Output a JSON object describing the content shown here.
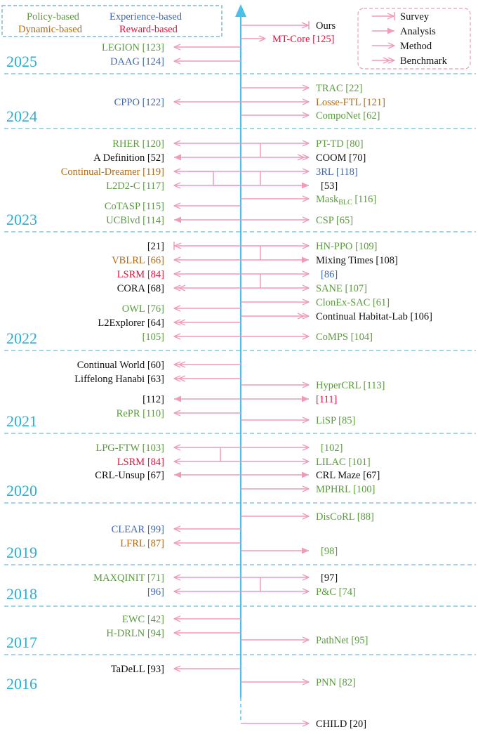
{
  "colors": {
    "policy": "#5b9a3f",
    "experience": "#3e67b1",
    "dynamic": "#b06a14",
    "reward": "#e0143c",
    "other": "#111111",
    "arrow": "#f29ab9",
    "axis": "#4cbfe8",
    "divider": "#7ec8e3",
    "year": "#2aaed1",
    "legend_border": "#e8a0bb",
    "category_border": "#5aa9c9"
  },
  "categories": [
    {
      "label": "Policy-based",
      "cat": "policy"
    },
    {
      "label": "Experience-based",
      "cat": "experience"
    },
    {
      "label": "Dynamic-based",
      "cat": "dynamic"
    },
    {
      "label": "Reward-based",
      "cat": "reward"
    }
  ],
  "legend": [
    {
      "label": "Survey",
      "style": "survey"
    },
    {
      "label": "Analysis",
      "style": "analysis"
    },
    {
      "label": "Method",
      "style": "method"
    },
    {
      "label": "Benchmark",
      "style": "benchmark"
    }
  ],
  "years": [
    "2025",
    "2024",
    "2023",
    "2022",
    "2021",
    "2020",
    "2019",
    "2018",
    "2017",
    "2016"
  ],
  "left_entries": [
    {
      "name": "LEGION",
      "ref": "[123]",
      "cat": "policy",
      "style": "method"
    },
    {
      "name": "DAAG",
      "ref": "[124]",
      "cat": "experience",
      "style": "method"
    },
    {
      "name": "CPPO",
      "ref": "[122]",
      "cat": "experience",
      "style": "method"
    },
    {
      "name": "RHER",
      "ref": "[120]",
      "cat": "policy",
      "style": "method"
    },
    {
      "name": "A Definition",
      "ref": "[52]",
      "cat": "other",
      "style": "analysis"
    },
    {
      "name": "Continual-Dreamer",
      "ref": "[119]",
      "cat": "dynamic",
      "style": "method"
    },
    {
      "name": "L2D2-C",
      "ref": "[117]",
      "cat": "policy",
      "style": "method"
    },
    {
      "name": "CoTASP",
      "ref": "[115]",
      "cat": "policy",
      "style": "method"
    },
    {
      "name": "UCBlvd",
      "ref": "[114]",
      "cat": "policy",
      "style": "analysis"
    },
    {
      "name": "",
      "ref": "[21]",
      "cat": "other",
      "style": "survey"
    },
    {
      "name": "VBLRL",
      "ref": "[66]",
      "cat": "dynamic",
      "style": "method"
    },
    {
      "name": "LSRM",
      "ref": "[84]",
      "cat": "reward",
      "style": "method"
    },
    {
      "name": "CORA",
      "ref": "[68]",
      "cat": "other",
      "style": "benchmark"
    },
    {
      "name": "OWL",
      "ref": "[76]",
      "cat": "policy",
      "style": "method"
    },
    {
      "name": "L2Explorer",
      "ref": "[64]",
      "cat": "other",
      "style": "benchmark"
    },
    {
      "name": "",
      "ref": "[105]",
      "cat": "policy",
      "style": "method"
    },
    {
      "name": "Continual World",
      "ref": "[60]",
      "cat": "other",
      "style": "benchmark"
    },
    {
      "name": "Liffelong Hanabi",
      "ref": "[63]",
      "cat": "other",
      "style": "benchmark"
    },
    {
      "name": "",
      "ref": "[112]",
      "cat": "other",
      "style": "analysis"
    },
    {
      "name": "RePR",
      "ref": "[110]",
      "cat": "policy",
      "style": "method"
    },
    {
      "name": "LPG-FTW",
      "ref": "[103]",
      "cat": "policy",
      "style": "method"
    },
    {
      "name": "LSRM",
      "ref": "[84]",
      "cat": "reward",
      "style": "method"
    },
    {
      "name": "CRL-Unsup",
      "ref": "[67]",
      "cat": "other",
      "style": "analysis"
    },
    {
      "name": "CLEAR",
      "ref": "[99]",
      "cat": "experience",
      "style": "method"
    },
    {
      "name": "LFRL",
      "ref": "[87]",
      "cat": "dynamic",
      "style": "method"
    },
    {
      "name": "MAXQINIT",
      "ref": "[71]",
      "cat": "policy",
      "style": "method"
    },
    {
      "name": "",
      "ref": "[96]",
      "cat": "experience",
      "style": "method"
    },
    {
      "name": "EWC",
      "ref": "[42]",
      "cat": "policy",
      "style": "method"
    },
    {
      "name": "H-DRLN",
      "ref": "[94]",
      "cat": "policy",
      "style": "method"
    },
    {
      "name": "TaDeLL",
      "ref": "[93]",
      "cat": "other",
      "style": "method"
    }
  ],
  "right_entries": [
    {
      "name": "Ours",
      "ref": "",
      "cat": "other",
      "style": "survey"
    },
    {
      "name": "MT-Core",
      "ref": "[125]",
      "cat": "reward",
      "style": "method"
    },
    {
      "name": "TRAC",
      "ref": "[22]",
      "cat": "policy",
      "style": "method"
    },
    {
      "name": "Losse-FTL",
      "ref": "[121]",
      "cat": "dynamic",
      "style": "method"
    },
    {
      "name": "CompoNet",
      "ref": "[62]",
      "cat": "policy",
      "style": "method"
    },
    {
      "name": "PT-TD",
      "ref": "[80]",
      "cat": "policy",
      "style": "method"
    },
    {
      "name": "COOM",
      "ref": "[70]",
      "cat": "other",
      "style": "benchmark"
    },
    {
      "name": "3RL",
      "ref": "[118]",
      "cat": "experience",
      "style": "method"
    },
    {
      "name": "",
      "ref": "[53]",
      "cat": "other",
      "style": "analysis"
    },
    {
      "name": "Mask",
      "sub": "BLC",
      "ref": "[116]",
      "cat": "policy",
      "style": "method"
    },
    {
      "name": "CSP",
      "ref": "[65]",
      "cat": "policy",
      "style": "method"
    },
    {
      "name": "HN-PPO",
      "ref": "[109]",
      "cat": "policy",
      "style": "method"
    },
    {
      "name": "Mixing Times",
      "ref": "[108]",
      "cat": "other",
      "style": "analysis"
    },
    {
      "name": "",
      "ref": "[86]",
      "cat": "experience",
      "style": "method"
    },
    {
      "name": "SANE",
      "ref": "[107]",
      "cat": "policy",
      "style": "method"
    },
    {
      "name": "ClonEx-SAC",
      "ref": "[61]",
      "cat": "policy",
      "style": "method"
    },
    {
      "name": "Continual Habitat-Lab",
      "ref": "[106]",
      "cat": "other",
      "style": "benchmark"
    },
    {
      "name": "CoMPS",
      "ref": "[104]",
      "cat": "policy",
      "style": "method"
    },
    {
      "name": "HyperCRL",
      "ref": "[113]",
      "cat": "policy",
      "style": "method"
    },
    {
      "name": "",
      "ref": "[111]",
      "cat": "reward",
      "style": "analysis"
    },
    {
      "name": "LiSP",
      "ref": "[85]",
      "cat": "policy",
      "style": "method"
    },
    {
      "name": "",
      "ref": "[102]",
      "cat": "policy",
      "style": "method"
    },
    {
      "name": "LILAC",
      "ref": "[101]",
      "cat": "policy",
      "style": "method"
    },
    {
      "name": "CRL Maze",
      "ref": "[67]",
      "cat": "other",
      "style": "analysis"
    },
    {
      "name": "MPHRL",
      "ref": "[100]",
      "cat": "policy",
      "style": "method"
    },
    {
      "name": "DisCoRL",
      "ref": "[88]",
      "cat": "policy",
      "style": "method"
    },
    {
      "name": "",
      "ref": "[98]",
      "cat": "policy",
      "style": "analysis"
    },
    {
      "name": "",
      "ref": "[97]",
      "cat": "other",
      "style": "method"
    },
    {
      "name": "P&C",
      "ref": "[74]",
      "cat": "policy",
      "style": "method"
    },
    {
      "name": "PathNet",
      "ref": "[95]",
      "cat": "policy",
      "style": "method"
    },
    {
      "name": "PNN",
      "ref": "[82]",
      "cat": "policy",
      "style": "method"
    },
    {
      "name": "CHILD",
      "ref": "[20]",
      "cat": "other",
      "style": "method"
    }
  ]
}
